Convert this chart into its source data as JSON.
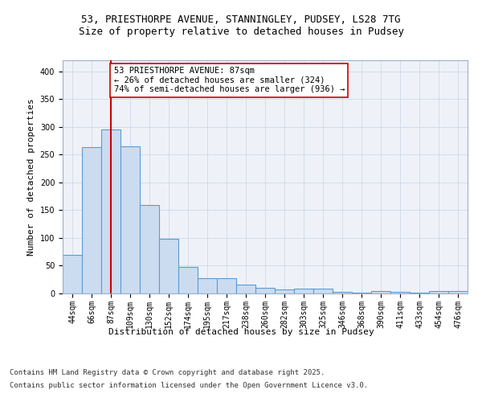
{
  "title_line1": "53, PRIESTHORPE AVENUE, STANNINGLEY, PUDSEY, LS28 7TG",
  "title_line2": "Size of property relative to detached houses in Pudsey",
  "xlabel": "Distribution of detached houses by size in Pudsey",
  "ylabel": "Number of detached properties",
  "categories": [
    "44sqm",
    "66sqm",
    "87sqm",
    "109sqm",
    "130sqm",
    "152sqm",
    "174sqm",
    "195sqm",
    "217sqm",
    "238sqm",
    "260sqm",
    "282sqm",
    "303sqm",
    "325sqm",
    "346sqm",
    "368sqm",
    "390sqm",
    "411sqm",
    "433sqm",
    "454sqm",
    "476sqm"
  ],
  "values": [
    70,
    263,
    295,
    265,
    160,
    99,
    48,
    27,
    27,
    16,
    10,
    7,
    8,
    8,
    3,
    2,
    4,
    3,
    2,
    4,
    5
  ],
  "bar_color": "#ccdcf0",
  "bar_edge_color": "#5b9bd5",
  "highlight_index": 2,
  "highlight_line_color": "#cc0000",
  "annotation_text": "53 PRIESTHORPE AVENUE: 87sqm\n← 26% of detached houses are smaller (324)\n74% of semi-detached houses are larger (936) →",
  "annotation_box_color": "#ffffff",
  "annotation_box_edge_color": "#cc0000",
  "ylim": [
    0,
    420
  ],
  "yticks": [
    0,
    50,
    100,
    150,
    200,
    250,
    300,
    350,
    400
  ],
  "grid_color": "#d0d8e8",
  "background_color": "#eef2f8",
  "footer_line1": "Contains HM Land Registry data © Crown copyright and database right 2025.",
  "footer_line2": "Contains public sector information licensed under the Open Government Licence v3.0.",
  "title_fontsize": 9,
  "axis_label_fontsize": 8,
  "tick_fontsize": 7,
  "footer_fontsize": 6.5,
  "annotation_fontsize": 7.5
}
